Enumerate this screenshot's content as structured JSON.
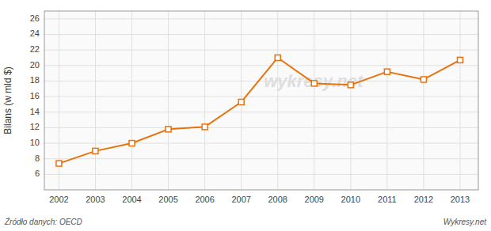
{
  "chart_data": {
    "type": "line",
    "x": [
      2002,
      2003,
      2004,
      2005,
      2006,
      2007,
      2008,
      2009,
      2010,
      2011,
      2012,
      2013
    ],
    "values": [
      7.4,
      9.0,
      10.0,
      11.8,
      12.1,
      15.3,
      21.0,
      17.7,
      17.5,
      19.2,
      18.2,
      20.7
    ],
    "color": "#e8720c",
    "marker": "square",
    "y_label": "Bilans (w mld $)",
    "xlim": [
      2001.6,
      2013.5
    ],
    "xticks": [
      2002,
      2003,
      2004,
      2005,
      2006,
      2007,
      2008,
      2009,
      2010,
      2011,
      2012,
      2013
    ],
    "ylim": [
      4,
      27
    ],
    "yticks": [
      6,
      8,
      10,
      12,
      14,
      16,
      18,
      20,
      22,
      24,
      26
    ],
    "grid": true,
    "annotations": [
      "wykresy.net",
      "Źródło danych:  OECD",
      "Wykresy.net"
    ]
  }
}
